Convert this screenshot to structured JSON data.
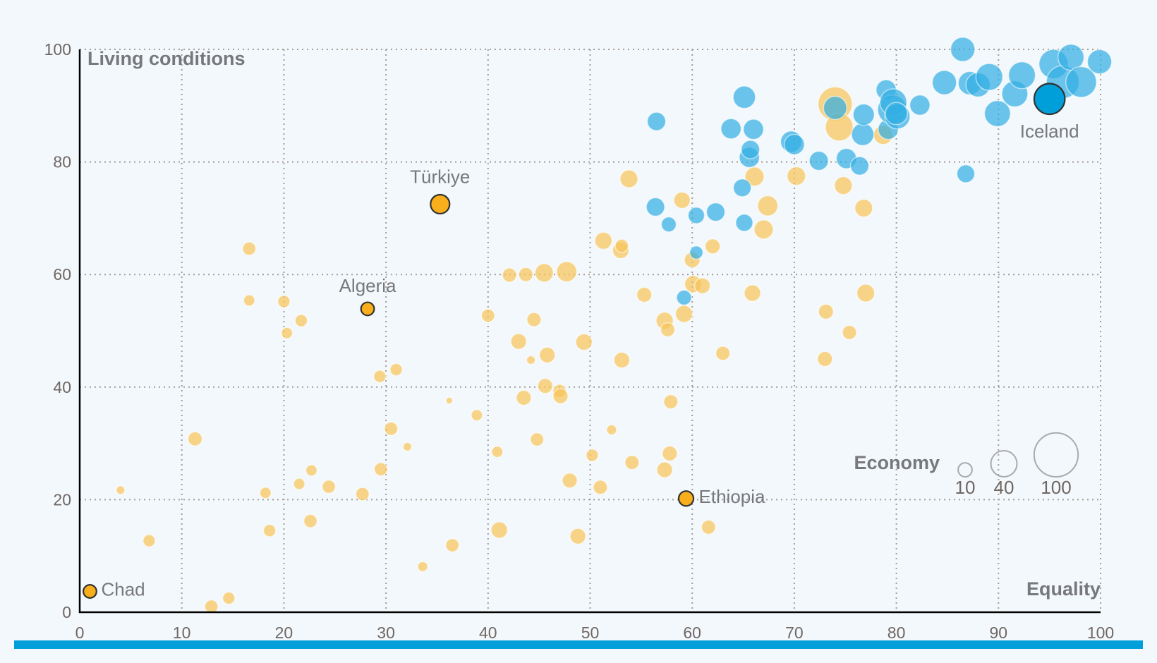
{
  "colors": {
    "background": "#f3f8fc",
    "group_a": "#f7c55a",
    "group_b": "#33aee3",
    "highlight_a": "#f9ae1b",
    "highlight_b": "#009fda",
    "grid": "#a59c95",
    "bar": "#009fda"
  },
  "chart_data": {
    "type": "scatter",
    "title": "",
    "xlabel": "Equality",
    "ylabel": "Living conditions",
    "xlim": [
      0,
      100
    ],
    "ylim": [
      0,
      100
    ],
    "x_ticks": [
      "0",
      "10",
      "20",
      "30",
      "40",
      "50",
      "60",
      "70",
      "80",
      "90",
      "100"
    ],
    "y_ticks": [
      "0",
      "20",
      "40",
      "60",
      "80",
      "100"
    ],
    "grid": true,
    "size_legend": {
      "title": "Economy",
      "values": [
        10,
        40,
        100
      ],
      "labels": [
        "10",
        "40",
        "100"
      ],
      "placement": "bottom-right"
    },
    "series": [
      {
        "name": "orange",
        "color_key": "group_a",
        "points": [
          {
            "x": 1,
            "y": 3.7,
            "size": 6,
            "label": "Chad",
            "highlight": true
          },
          {
            "x": 28.2,
            "y": 53.9,
            "size": 6,
            "label": "Algeria",
            "highlight": true
          },
          {
            "x": 35.3,
            "y": 72.5,
            "size": 14,
            "label": "Türkiye",
            "highlight": true
          },
          {
            "x": 59.4,
            "y": 20.2,
            "size": 8,
            "label": "Ethiopia",
            "highlight": true
          },
          {
            "x": 4,
            "y": 21.7,
            "size": 2
          },
          {
            "x": 6.8,
            "y": 12.7,
            "size": 5
          },
          {
            "x": 11.3,
            "y": 30.8,
            "size": 7
          },
          {
            "x": 12.9,
            "y": 1,
            "size": 6
          },
          {
            "x": 14.6,
            "y": 2.5,
            "size": 5
          },
          {
            "x": 16.6,
            "y": 64.6,
            "size": 6
          },
          {
            "x": 16.6,
            "y": 55.4,
            "size": 4
          },
          {
            "x": 18.2,
            "y": 21.2,
            "size": 4
          },
          {
            "x": 18.6,
            "y": 14.5,
            "size": 5
          },
          {
            "x": 20,
            "y": 55.2,
            "size": 5
          },
          {
            "x": 20.3,
            "y": 49.6,
            "size": 4
          },
          {
            "x": 21.5,
            "y": 22.8,
            "size": 4
          },
          {
            "x": 21.7,
            "y": 51.8,
            "size": 5
          },
          {
            "x": 22.6,
            "y": 16.2,
            "size": 6
          },
          {
            "x": 22.7,
            "y": 25.2,
            "size": 4
          },
          {
            "x": 24.4,
            "y": 22.3,
            "size": 6
          },
          {
            "x": 27.7,
            "y": 21,
            "size": 6
          },
          {
            "x": 29.4,
            "y": 41.9,
            "size": 5
          },
          {
            "x": 29.5,
            "y": 25.4,
            "size": 6
          },
          {
            "x": 30.5,
            "y": 32.6,
            "size": 6
          },
          {
            "x": 31,
            "y": 43.1,
            "size": 5
          },
          {
            "x": 32.1,
            "y": 29.4,
            "size": 2
          },
          {
            "x": 33.6,
            "y": 8.1,
            "size": 3
          },
          {
            "x": 36.2,
            "y": 37.6,
            "size": 1
          },
          {
            "x": 36.5,
            "y": 11.9,
            "size": 6
          },
          {
            "x": 38.9,
            "y": 35,
            "size": 4
          },
          {
            "x": 40,
            "y": 52.7,
            "size": 6
          },
          {
            "x": 40.9,
            "y": 28.5,
            "size": 4
          },
          {
            "x": 41.1,
            "y": 14.6,
            "size": 10
          },
          {
            "x": 42.1,
            "y": 59.9,
            "size": 7
          },
          {
            "x": 43,
            "y": 48.1,
            "size": 9
          },
          {
            "x": 43.5,
            "y": 38.1,
            "size": 8
          },
          {
            "x": 43.7,
            "y": 60,
            "size": 7
          },
          {
            "x": 44.2,
            "y": 44.8,
            "size": 2
          },
          {
            "x": 44.5,
            "y": 52,
            "size": 7
          },
          {
            "x": 44.8,
            "y": 30.7,
            "size": 6
          },
          {
            "x": 45.5,
            "y": 60.3,
            "size": 13
          },
          {
            "x": 45.6,
            "y": 40.2,
            "size": 8
          },
          {
            "x": 45.8,
            "y": 45.7,
            "size": 9
          },
          {
            "x": 47,
            "y": 39.3,
            "size": 6
          },
          {
            "x": 47.1,
            "y": 38.4,
            "size": 8
          },
          {
            "x": 47.7,
            "y": 60.5,
            "size": 16
          },
          {
            "x": 48,
            "y": 23.4,
            "size": 8
          },
          {
            "x": 48.8,
            "y": 13.5,
            "size": 9
          },
          {
            "x": 49.4,
            "y": 48,
            "size": 10
          },
          {
            "x": 50.2,
            "y": 27.9,
            "size": 5
          },
          {
            "x": 51,
            "y": 22.2,
            "size": 7
          },
          {
            "x": 51.3,
            "y": 66,
            "size": 11
          },
          {
            "x": 52.1,
            "y": 32.4,
            "size": 3
          },
          {
            "x": 53,
            "y": 64.3,
            "size": 10
          },
          {
            "x": 53.1,
            "y": 44.8,
            "size": 9
          },
          {
            "x": 53.1,
            "y": 65.1,
            "size": 6
          },
          {
            "x": 53.8,
            "y": 77,
            "size": 12
          },
          {
            "x": 54.1,
            "y": 26.6,
            "size": 7
          },
          {
            "x": 55.3,
            "y": 56.4,
            "size": 8
          },
          {
            "x": 57.3,
            "y": 25.3,
            "size": 9
          },
          {
            "x": 57.3,
            "y": 51.8,
            "size": 11
          },
          {
            "x": 57.6,
            "y": 50.2,
            "size": 7
          },
          {
            "x": 57.8,
            "y": 28.2,
            "size": 8
          },
          {
            "x": 57.9,
            "y": 37.4,
            "size": 7
          },
          {
            "x": 59,
            "y": 73.2,
            "size": 10
          },
          {
            "x": 59.2,
            "y": 53,
            "size": 11
          },
          {
            "x": 60,
            "y": 62.6,
            "size": 9
          },
          {
            "x": 60.1,
            "y": 58.3,
            "size": 11
          },
          {
            "x": 61,
            "y": 58,
            "size": 9
          },
          {
            "x": 61.6,
            "y": 15.1,
            "size": 7
          },
          {
            "x": 62,
            "y": 65,
            "size": 8
          },
          {
            "x": 63,
            "y": 46,
            "size": 7
          },
          {
            "x": 65.9,
            "y": 56.7,
            "size": 10
          },
          {
            "x": 66.1,
            "y": 77.4,
            "size": 14
          },
          {
            "x": 67,
            "y": 68,
            "size": 14
          },
          {
            "x": 67.4,
            "y": 72.2,
            "size": 16
          },
          {
            "x": 70.2,
            "y": 77.5,
            "size": 13
          },
          {
            "x": 73,
            "y": 45,
            "size": 8
          },
          {
            "x": 73.1,
            "y": 53.4,
            "size": 8
          },
          {
            "x": 74,
            "y": 90.3,
            "size": 50
          },
          {
            "x": 74.4,
            "y": 86.2,
            "size": 32
          },
          {
            "x": 74.8,
            "y": 75.8,
            "size": 12
          },
          {
            "x": 75.4,
            "y": 49.7,
            "size": 7
          },
          {
            "x": 76.8,
            "y": 71.8,
            "size": 12
          },
          {
            "x": 77,
            "y": 56.7,
            "size": 12
          },
          {
            "x": 78.7,
            "y": 84.8,
            "size": 14
          }
        ]
      },
      {
        "name": "blue",
        "color_key": "group_b",
        "points": [
          {
            "x": 95,
            "y": 91.2,
            "size": 40,
            "label": "Iceland",
            "highlight": true
          },
          {
            "x": 56.4,
            "y": 72,
            "size": 13
          },
          {
            "x": 56.5,
            "y": 87.2,
            "size": 13
          },
          {
            "x": 57.7,
            "y": 68.9,
            "size": 8
          },
          {
            "x": 59.2,
            "y": 55.9,
            "size": 8
          },
          {
            "x": 60.4,
            "y": 63.9,
            "size": 6
          },
          {
            "x": 60.4,
            "y": 70.5,
            "size": 10
          },
          {
            "x": 62.3,
            "y": 71.1,
            "size": 13
          },
          {
            "x": 63.8,
            "y": 85.9,
            "size": 16
          },
          {
            "x": 64.9,
            "y": 75.4,
            "size": 12
          },
          {
            "x": 65.1,
            "y": 69.2,
            "size": 11
          },
          {
            "x": 65.1,
            "y": 91.5,
            "size": 20
          },
          {
            "x": 65.6,
            "y": 80.8,
            "size": 16
          },
          {
            "x": 65.7,
            "y": 82.2,
            "size": 13
          },
          {
            "x": 66,
            "y": 85.8,
            "size": 16
          },
          {
            "x": 69.7,
            "y": 83.6,
            "size": 18
          },
          {
            "x": 70,
            "y": 83.1,
            "size": 16
          },
          {
            "x": 72.4,
            "y": 80.2,
            "size": 14
          },
          {
            "x": 74,
            "y": 89.6,
            "size": 22
          },
          {
            "x": 75.1,
            "y": 80.6,
            "size": 16
          },
          {
            "x": 76.4,
            "y": 79.3,
            "size": 13
          },
          {
            "x": 76.7,
            "y": 84.9,
            "size": 20
          },
          {
            "x": 76.8,
            "y": 88.4,
            "size": 18
          },
          {
            "x": 79,
            "y": 92.8,
            "size": 16
          },
          {
            "x": 79.2,
            "y": 85.8,
            "size": 16
          },
          {
            "x": 79.6,
            "y": 89.3,
            "size": 36
          },
          {
            "x": 79.7,
            "y": 90.6,
            "size": 30
          },
          {
            "x": 80.1,
            "y": 88.1,
            "size": 26
          },
          {
            "x": 80,
            "y": 88.6,
            "size": 20
          },
          {
            "x": 82.3,
            "y": 90.1,
            "size": 16
          },
          {
            "x": 84.7,
            "y": 94.1,
            "size": 24
          },
          {
            "x": 86.5,
            "y": 100,
            "size": 24
          },
          {
            "x": 86.8,
            "y": 77.9,
            "size": 12
          },
          {
            "x": 87.2,
            "y": 94,
            "size": 22
          },
          {
            "x": 88,
            "y": 93.7,
            "size": 24
          },
          {
            "x": 89.1,
            "y": 95.1,
            "size": 30
          },
          {
            "x": 89.9,
            "y": 88.6,
            "size": 28
          },
          {
            "x": 91.6,
            "y": 92.1,
            "size": 28
          },
          {
            "x": 92.3,
            "y": 95.4,
            "size": 30
          },
          {
            "x": 95.4,
            "y": 97.4,
            "size": 36
          },
          {
            "x": 96.3,
            "y": 94.2,
            "size": 46
          },
          {
            "x": 97.1,
            "y": 98.6,
            "size": 28
          },
          {
            "x": 98.1,
            "y": 94.2,
            "size": 40
          },
          {
            "x": 99.9,
            "y": 97.8,
            "size": 24
          }
        ]
      }
    ]
  }
}
